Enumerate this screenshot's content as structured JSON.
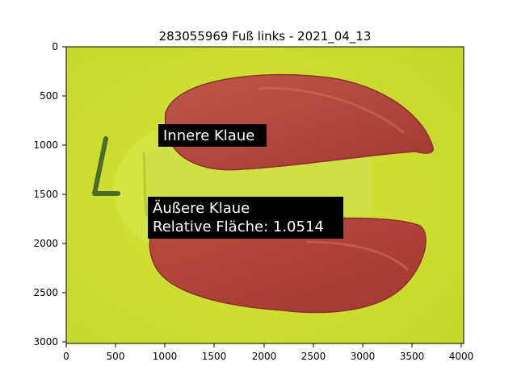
{
  "figure": {
    "title": "283055969 Fuß links - 2021_04_13",
    "x_axis": {
      "ticks": [
        "0",
        "500",
        "1000",
        "1500",
        "2000",
        "2500",
        "3000",
        "3500",
        "4000"
      ]
    },
    "y_axis": {
      "ticks": [
        "0",
        "500",
        "1000",
        "1500",
        "2000",
        "2500",
        "3000"
      ]
    },
    "annotations": {
      "inner": {
        "line1": "Innere Klaue"
      },
      "outer": {
        "line1": "Äußere Klaue",
        "line2": "Relative Fläche: 1.0514"
      }
    },
    "colors": {
      "background": "#c9dc2c",
      "claw_overlay": "#b2463c",
      "label_box": "#000000"
    }
  }
}
